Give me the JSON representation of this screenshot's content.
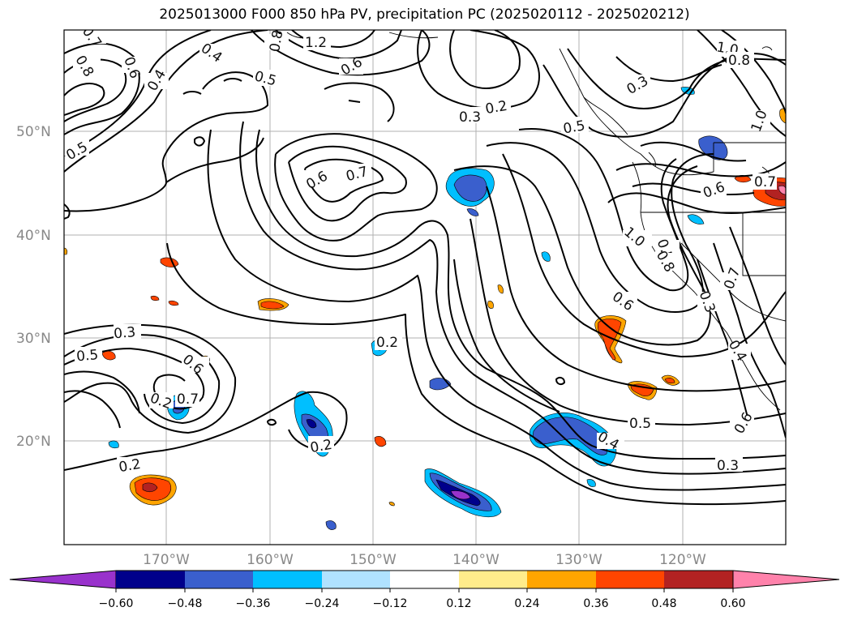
{
  "title": "2025013000 F000 850 hPa PV, precipitation PC (2025020112 - 2025020212)",
  "map": {
    "lon_labels": [
      "170°W",
      "160°W",
      "150°W",
      "140°W",
      "130°W",
      "120°W"
    ],
    "lat_labels": [
      "50°N",
      "40°N",
      "30°N",
      "20°N"
    ],
    "contour_labels": [
      "0.7",
      "0.8",
      "0.6",
      "0.4",
      "0.4",
      "0.5",
      "1.2",
      "0.8",
      "0.6",
      "0.5",
      "0.3",
      "0.2",
      "0.5",
      "0.3",
      "1.0",
      "0.8",
      "1.0",
      "0.6",
      "0.7",
      "0.6",
      "0.7",
      "0.3",
      "0.5",
      "0.6",
      "0.7",
      "0.2",
      "0.2",
      "0.2",
      "0.2",
      "0.6",
      "0.5",
      "0.3",
      "0.4",
      "0.5",
      "0.3",
      "0.6",
      "0.8",
      "1.0",
      "0.7",
      "0.4"
    ]
  },
  "colorbar": {
    "ticks": [
      "−0.60",
      "−0.48",
      "−0.36",
      "−0.24",
      "−0.12",
      "0.12",
      "0.24",
      "0.36",
      "0.48",
      "0.60"
    ],
    "colors": [
      "#9932cc",
      "#00008b",
      "#3a5fcd",
      "#00bfff",
      "#b0e2ff",
      "#ffffff",
      "#ffec8b",
      "#ffa500",
      "#ff4500",
      "#b22222",
      "#ff82ab"
    ]
  }
}
